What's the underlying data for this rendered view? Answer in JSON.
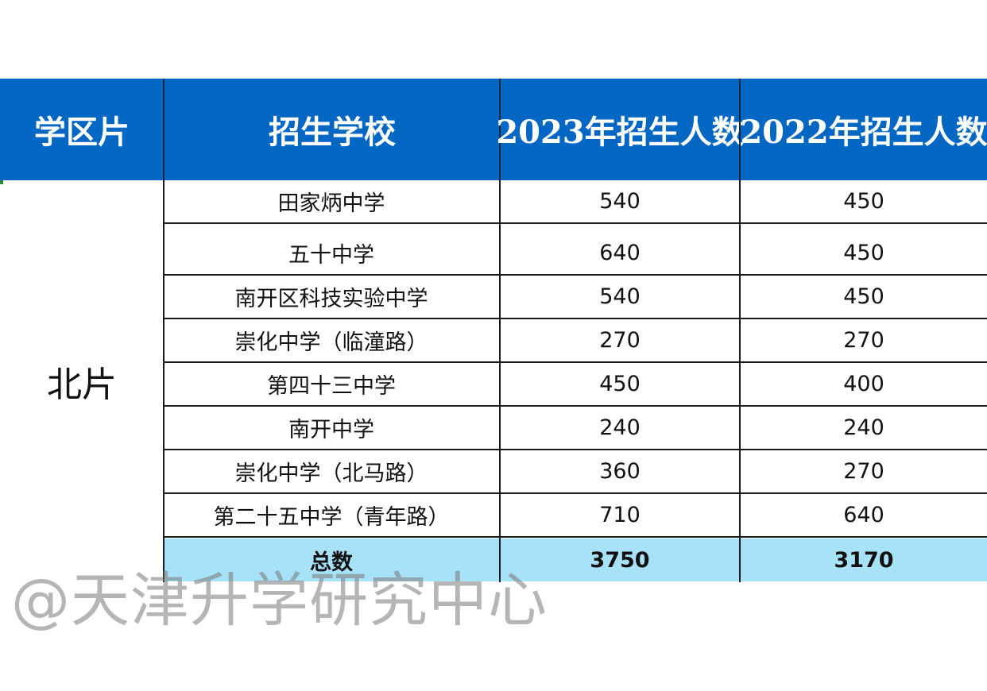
{
  "header": {
    "district": "学区片",
    "school": "招生学校",
    "y2023": "2023年招生人数",
    "y2022": "2022年招生人数"
  },
  "district": "北片",
  "rows": [
    {
      "school": "田家炳中学",
      "y2023": "540",
      "y2022": "450"
    },
    {
      "school": "五十中学",
      "y2023": "640",
      "y2022": "450"
    },
    {
      "school": "南开区科技实验中学",
      "y2023": "540",
      "y2022": "450"
    },
    {
      "school": "崇化中学（临潼路）",
      "y2023": "270",
      "y2022": "270"
    },
    {
      "school": "第四十三中学",
      "y2023": "450",
      "y2022": "400"
    },
    {
      "school": "南开中学",
      "y2023": "240",
      "y2022": "240"
    },
    {
      "school": "崇化中学（北马路）",
      "y2023": "360",
      "y2022": "270"
    },
    {
      "school": "第二十五中学（青年路）",
      "y2023": "710",
      "y2022": "640"
    }
  ],
  "total": {
    "label": "总数",
    "y2023": "3750",
    "y2022": "3170"
  },
  "watermark": "@天津升学研究中心",
  "colors": {
    "header_bg": "#0567c4",
    "total_bg": "#a8e2f8"
  }
}
